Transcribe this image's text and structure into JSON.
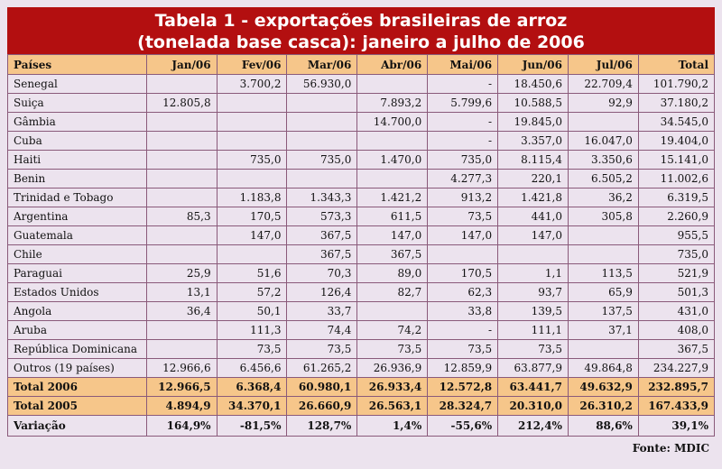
{
  "title_line1": "Tabela 1 - exportações brasileiras de arroz",
  "title_line2": "(tonelada base casca): janeiro a julho de 2006",
  "headers": [
    "Países",
    "Jan/06",
    "Fev/06",
    "Mar/06",
    "Abr/06",
    "Mai/06",
    "Jun/06",
    "Jul/06",
    "Total"
  ],
  "rows": [
    [
      "Senegal",
      "",
      "3.700,2",
      "56.930,0",
      "",
      "-",
      "18.450,6",
      "22.709,4",
      "101.790,2"
    ],
    [
      "Suiça",
      "12.805,8",
      "",
      "",
      "7.893,2",
      "5.799,6",
      "10.588,5",
      "92,9",
      "37.180,2"
    ],
    [
      "Gâmbia",
      "",
      "",
      "",
      "14.700,0",
      "-",
      "19.845,0",
      "",
      "34.545,0"
    ],
    [
      "Cuba",
      "",
      "",
      "",
      "",
      "-",
      "3.357,0",
      "16.047,0",
      "19.404,0"
    ],
    [
      "Haiti",
      "",
      "735,0",
      "735,0",
      "1.470,0",
      "735,0",
      "8.115,4",
      "3.350,6",
      "15.141,0"
    ],
    [
      "Benin",
      "",
      "",
      "",
      "",
      "4.277,3",
      "220,1",
      "6.505,2",
      "11.002,6"
    ],
    [
      "Trinidad e Tobago",
      "",
      "1.183,8",
      "1.343,3",
      "1.421,2",
      "913,2",
      "1.421,8",
      "36,2",
      "6.319,5"
    ],
    [
      "Argentina",
      "85,3",
      "170,5",
      "573,3",
      "611,5",
      "73,5",
      "441,0",
      "305,8",
      "2.260,9"
    ],
    [
      "Guatemala",
      "",
      "147,0",
      "367,5",
      "147,0",
      "147,0",
      "147,0",
      "",
      "955,5"
    ],
    [
      "Chile",
      "",
      "",
      "367,5",
      "367,5",
      "",
      "",
      "",
      "735,0"
    ],
    [
      "Paraguai",
      "25,9",
      "51,6",
      "70,3",
      "89,0",
      "170,5",
      "1,1",
      "113,5",
      "521,9"
    ],
    [
      "Estados Unidos",
      "13,1",
      "57,2",
      "126,4",
      "82,7",
      "62,3",
      "93,7",
      "65,9",
      "501,3"
    ],
    [
      "Angola",
      "36,4",
      "50,1",
      "33,7",
      "",
      "33,8",
      "139,5",
      "137,5",
      "431,0"
    ],
    [
      "Aruba",
      "",
      "111,3",
      "74,4",
      "74,2",
      "-",
      "111,1",
      "37,1",
      "408,0"
    ],
    [
      "República Dominicana",
      "",
      "73,5",
      "73,5",
      "73,5",
      "73,5",
      "73,5",
      "",
      "367,5"
    ],
    [
      "Outros (19 países)",
      "12.966,6",
      "6.456,6",
      "61.265,2",
      "26.936,9",
      "12.859,9",
      "63.877,9",
      "49.864,8",
      "234.227,9"
    ]
  ],
  "total_2006": [
    "Total 2006",
    "12.966,5",
    "6.368,4",
    "60.980,1",
    "26.933,4",
    "12.572,8",
    "63.441,7",
    "49.632,9",
    "232.895,7"
  ],
  "total_2005": [
    "Total 2005",
    "4.894,9",
    "34.370,1",
    "26.660,9",
    "26.563,1",
    "28.324,7",
    "20.310,0",
    "26.310,2",
    "167.433,9"
  ],
  "variation": [
    "Variação",
    "164,9%",
    "-81,5%",
    "128,7%",
    "1,4%",
    "-55,6%",
    "212,4%",
    "88,6%",
    "39,1%"
  ],
  "source": "Fonte: MDIC",
  "colors": {
    "title_bg": "#b30f10",
    "header_bg": "#f6c68a",
    "body_bg": "#ece3ee"
  }
}
